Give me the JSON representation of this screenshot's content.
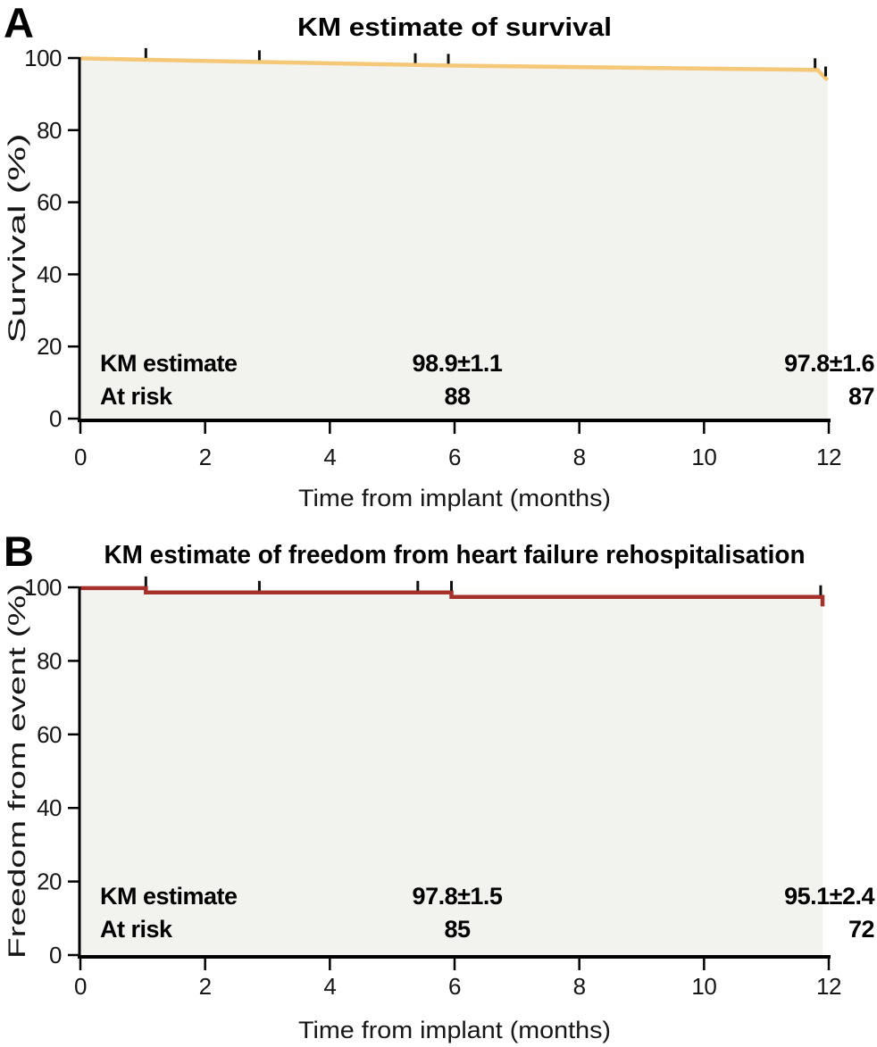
{
  "chart_data": [
    {
      "type": "line",
      "panel_label": "A",
      "title": "KM estimate of survival",
      "xlabel": "Time from implant (months)",
      "ylabel": "Survival (%)",
      "xlim": [
        0,
        12
      ],
      "ylim": [
        0,
        100
      ],
      "xticks": [
        0,
        2,
        4,
        6,
        8,
        10,
        12
      ],
      "yticks": [
        0,
        20,
        40,
        60,
        80,
        100
      ],
      "grid": false,
      "legend": "none",
      "line_color": "#f5c878",
      "fill_color": "#f2f2ef",
      "curve_style": "gradual-decline",
      "points": [
        [
          0,
          99.9
        ],
        [
          2,
          99.2
        ],
        [
          6,
          97.9
        ],
        [
          11.82,
          96.7
        ],
        [
          11.98,
          93.9
        ]
      ],
      "censor_marks_months": [
        1.05,
        2.87,
        5.37,
        5.9,
        11.78,
        11.95
      ],
      "annotations": {
        "km_label": "KM estimate",
        "at_risk_label": "At risk",
        "km_6mo": "98.9±1.1",
        "km_12mo": "97.8±1.6",
        "at_risk_6mo": "88",
        "at_risk_12mo": "87"
      }
    },
    {
      "type": "line",
      "panel_label": "B",
      "title": "KM estimate of freedom from heart failure rehospitalisation",
      "xlabel": "Time from implant (months)",
      "ylabel": "Freedom from event (%)",
      "xlim": [
        0,
        12
      ],
      "ylim": [
        0,
        100
      ],
      "xticks": [
        0,
        2,
        4,
        6,
        8,
        10,
        12
      ],
      "yticks": [
        0,
        20,
        40,
        60,
        80,
        100
      ],
      "grid": false,
      "legend": "none",
      "line_color": "#a5312b",
      "fill_color": "#f2f2ef",
      "curve_style": "step",
      "points": [
        [
          0,
          99.8
        ],
        [
          1.05,
          99.8
        ],
        [
          1.05,
          98.6
        ],
        [
          5.95,
          98.6
        ],
        [
          5.95,
          97.4
        ],
        [
          11.9,
          97.4
        ],
        [
          11.9,
          94.8
        ]
      ],
      "censor_marks_months": [
        1.05,
        2.87,
        5.41,
        5.95,
        11.87
      ],
      "annotations": {
        "km_label": "KM estimate",
        "at_risk_label": "At risk",
        "km_6mo": "97.8±1.5",
        "km_12mo": "95.1±2.4",
        "at_risk_6mo": "85",
        "at_risk_12mo": "72"
      }
    }
  ]
}
